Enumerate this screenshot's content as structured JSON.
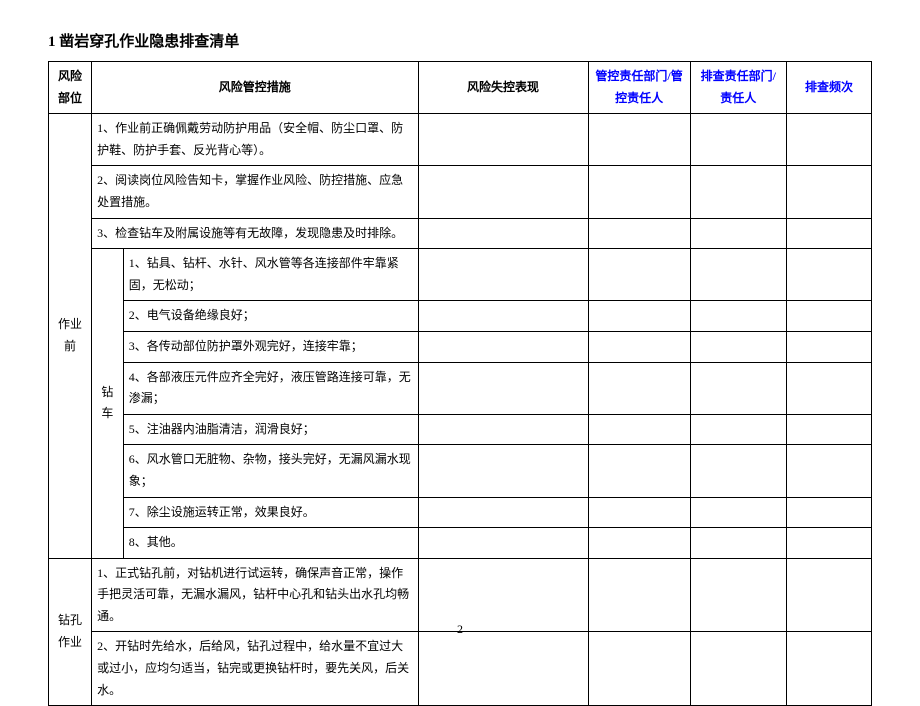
{
  "title": "1 凿岩穿孔作业隐患排查清单",
  "pageNumber": "2",
  "headers": {
    "riskPart": "风险部位",
    "measure": "风险管控措施",
    "lossControl": "风险失控表现",
    "dept1": "管控责任部门/管控责任人",
    "dept2": "排查责任部门/责任人",
    "freq": "排查频次"
  },
  "section1": {
    "label": "作业前",
    "rows": {
      "r1": "1、作业前正确佩戴劳动防护用品（安全帽、防尘口罩、防护鞋、防护手套、反光背心等）。",
      "r2": "2、阅读岗位风险告知卡，掌握作业风险、防控措施、应急处置措施。",
      "r3": "3、检查钻车及附属设施等有无故障，发现隐患及时排除。"
    },
    "subLabel": "钻车",
    "subRows": {
      "s1": "1、钻具、钻杆、水针、风水管等各连接部件牢靠紧固，无松动；",
      "s2": "2、电气设备绝缘良好；",
      "s3": "3、各传动部位防护罩外观完好，连接牢靠；",
      "s4": "4、各部液压元件应齐全完好，液压管路连接可靠，无渗漏；",
      "s5": "5、注油器内油脂清洁，润滑良好；",
      "s6": "6、风水管口无脏物、杂物，接头完好，无漏风漏水现象；",
      "s7": "7、除尘设施运转正常，效果良好。",
      "s8": "8、其他。"
    }
  },
  "section2": {
    "label": "钻孔作业",
    "rows": {
      "r1": "1、正式钻孔前，对钻机进行试运转，确保声音正常，操作手把灵活可靠，无漏水漏风，钻杆中心孔和钻头出水孔均畅通。",
      "r2": "2、开钻时先给水，后给风，钻孔过程中，给水量不宜过大或过小，应均匀适当，钻完或更换钻杆时，要先关风，后关水。"
    }
  }
}
